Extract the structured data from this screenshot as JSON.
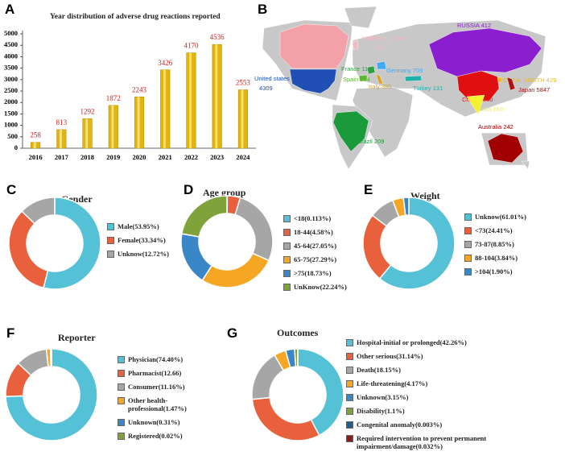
{
  "chart_data": [
    {
      "type": "bar",
      "panel": "A",
      "title": "Year distribution of adverse drug reactions reported",
      "categories": [
        "2016",
        "2017",
        "2018",
        "2019",
        "2020",
        "2021",
        "2022",
        "2023",
        "2024"
      ],
      "values": [
        258,
        813,
        1292,
        1872,
        2243,
        3426,
        4170,
        4536,
        2553
      ],
      "color": "#e2b410",
      "label_color": "#d02020",
      "ylim": [
        0,
        5000
      ],
      "yticks": [
        0,
        500,
        1000,
        1500,
        2000,
        2500,
        3000,
        3500,
        4000,
        4500,
        5000
      ]
    },
    {
      "type": "map",
      "panel": "B",
      "countries": [
        {
          "name": "Canada",
          "value": 243,
          "color": "#f4a0a8"
        },
        {
          "name": "United Kingdom",
          "value": 956,
          "color": "#f4b8c0"
        },
        {
          "name": "RUSSIA",
          "value": 412,
          "color": "#8b1fd0"
        },
        {
          "name": "United states",
          "value": 4309,
          "color": "#1f4fb5"
        },
        {
          "name": "France",
          "value": 1162,
          "color": "#2ea043"
        },
        {
          "name": "Germany",
          "value": 709,
          "color": "#3fa9f5"
        },
        {
          "name": "Spain",
          "value": 614,
          "color": "#5cb82e"
        },
        {
          "name": "Italy",
          "value": 395,
          "color": "#d9a520"
        },
        {
          "name": "Turkey",
          "value": 131,
          "color": "#20b2aa"
        },
        {
          "name": "KOREA, SOUTH",
          "value": 429,
          "color": "#e8b820"
        },
        {
          "name": "Japan",
          "value": 5847,
          "color": "#b01010"
        },
        {
          "name": "China",
          "value": 1050,
          "color": "#e01010"
        },
        {
          "name": "India",
          "value": 160,
          "color": "#f2f230"
        },
        {
          "name": "Brazil",
          "value": 209,
          "color": "#1a9a3a"
        },
        {
          "name": "Australia",
          "value": 242,
          "color": "#a00000"
        }
      ]
    },
    {
      "type": "pie",
      "panel": "C",
      "title": "Gender",
      "categories": [
        "Male(53.95%)",
        "Female(33.34%)",
        "Unknow(12.72%)"
      ],
      "values": [
        53.95,
        33.34,
        12.72
      ],
      "colors": [
        "#55c1d6",
        "#e8603c",
        "#a6a6a6"
      ]
    },
    {
      "type": "pie",
      "panel": "D",
      "title": "Age group",
      "categories": [
        "<18(0.113%)",
        "18-44(4.58%)",
        "45-64(27.05%)",
        "65-75(27.29%)",
        ">75(18.73%)",
        "UnKnow(22.24%)"
      ],
      "values": [
        0.113,
        4.58,
        27.05,
        27.29,
        18.73,
        22.24
      ],
      "colors": [
        "#55c1d6",
        "#e8603c",
        "#a6a6a6",
        "#f5a623",
        "#3a87c8",
        "#7fa33a"
      ]
    },
    {
      "type": "pie",
      "panel": "E",
      "title": "Weight",
      "categories": [
        "Unknow(61.01%)",
        "<73(24.41%)",
        "73-87(8.85%)",
        "88-104(3.84%)",
        ">104(1.90%)"
      ],
      "values": [
        61.01,
        24.41,
        8.85,
        3.84,
        1.9
      ],
      "colors": [
        "#55c1d6",
        "#e8603c",
        "#a6a6a6",
        "#f5a623",
        "#3a87c8"
      ]
    },
    {
      "type": "pie",
      "panel": "F",
      "title": "Reporter",
      "categories": [
        "Physician(74.40%)",
        "Pharmacist(12.66)",
        "Consumer(11.16%)",
        "Other health-professional(1.47%)",
        "Unknown(0.31%)",
        "Registered(0.02%)"
      ],
      "values": [
        74.4,
        12.66,
        11.16,
        1.47,
        0.31,
        0.02
      ],
      "colors": [
        "#55c1d6",
        "#e8603c",
        "#a6a6a6",
        "#f5a623",
        "#3a87c8",
        "#7fa33a"
      ]
    },
    {
      "type": "pie",
      "panel": "G",
      "title": "Outcomes",
      "categories": [
        "Hospital-initial or prolonged(42.26%)",
        "Other serious(31.14%)",
        "Death(18.15%)",
        "Life-threatening(4.17%)",
        "Unknown(3.15%)",
        "Disability(1.1%)",
        "Congenital anomaly(0.003%)",
        "Required intervention to prevent permanent impairment/damage(0.032%)"
      ],
      "values": [
        42.26,
        31.14,
        18.15,
        4.17,
        3.15,
        1.1,
        0.003,
        0.032
      ],
      "colors": [
        "#55c1d6",
        "#e8603c",
        "#a6a6a6",
        "#f5a623",
        "#3a87c8",
        "#7fa33a",
        "#1f5f8b",
        "#8b1a1a"
      ]
    }
  ]
}
